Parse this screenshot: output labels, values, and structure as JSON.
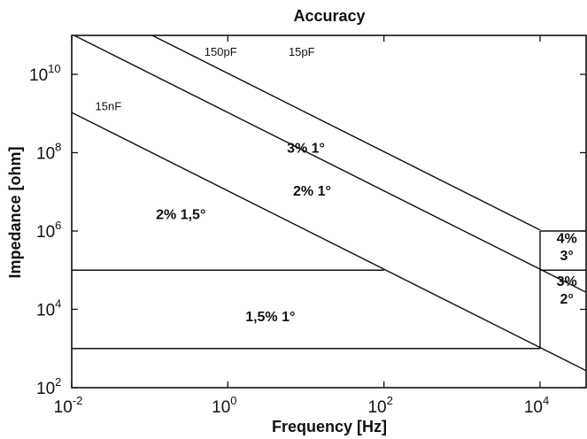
{
  "chart_data": {
    "type": "line",
    "title": "Accuracy",
    "xlabel": "Frequency [Hz]",
    "ylabel": "Impedance [ohm]",
    "x_scale": "log",
    "y_scale": "log",
    "xlim": [
      0.01,
      40000
    ],
    "ylim": [
      100,
      10000000000
    ],
    "grid": false,
    "x_ticks": [
      {
        "base": "10",
        "exp": "-2",
        "value": 0.01
      },
      {
        "base": "10",
        "exp": "0",
        "value": 1
      },
      {
        "base": "10",
        "exp": "2",
        "value": 100
      },
      {
        "base": "10",
        "exp": "4",
        "value": 10000
      }
    ],
    "y_ticks": [
      {
        "base": "10",
        "exp": "2",
        "value": 100
      },
      {
        "base": "10",
        "exp": "4",
        "value": 10000
      },
      {
        "base": "10",
        "exp": "6",
        "value": 1000000
      },
      {
        "base": "10",
        "exp": "8",
        "value": 100000000
      },
      {
        "base": "10",
        "exp": "10",
        "value": 10000000000
      }
    ],
    "series": [
      {
        "name": "15pF",
        "kind": "capacitor_line",
        "x": [
          0.1,
          10000
        ],
        "y": [
          106000000000,
          1060000
        ],
        "label_x": 6,
        "label_y": 30000000000
      },
      {
        "name": "150pF",
        "kind": "capacitor_line",
        "x": [
          0.01,
          40000
        ],
        "y": [
          106000000000,
          26500
        ],
        "label_x": 0.5,
        "label_y": 30000000000
      },
      {
        "name": "15nF",
        "kind": "capacitor_line",
        "x": [
          0.01,
          40000
        ],
        "y": [
          1060000000,
          265
        ],
        "label_x": 0.02,
        "label_y": 1200000000
      }
    ],
    "boundaries": [
      {
        "x": [
          0.01,
          100
        ],
        "y": [
          100000,
          100000
        ]
      },
      {
        "x": [
          0.01,
          10000
        ],
        "y": [
          1000,
          1000
        ]
      },
      {
        "x": [
          10000,
          10000
        ],
        "y": [
          1000,
          1000000
        ]
      },
      {
        "x": [
          10000,
          40000
        ],
        "y": [
          1000000,
          1000000
        ]
      },
      {
        "x": [
          10000,
          40000
        ],
        "y": [
          100000,
          100000
        ]
      }
    ],
    "regions": [
      {
        "label": "2% 1,5°",
        "x": 0.25,
        "y": 2000000
      },
      {
        "label": "2% 1°",
        "x": 12,
        "y": 8000000
      },
      {
        "label": "3% 1°",
        "x": 10,
        "y": 100000000
      },
      {
        "label": "1,5% 1°",
        "x": 3.5,
        "y": 5000
      },
      {
        "label": "4%",
        "x": 22000,
        "y": 500000
      },
      {
        "label": "3°",
        "x": 22000,
        "y": 180000
      },
      {
        "label": "3%",
        "x": 22000,
        "y": 40000
      },
      {
        "label": "2°",
        "x": 22000,
        "y": 14000
      }
    ]
  }
}
